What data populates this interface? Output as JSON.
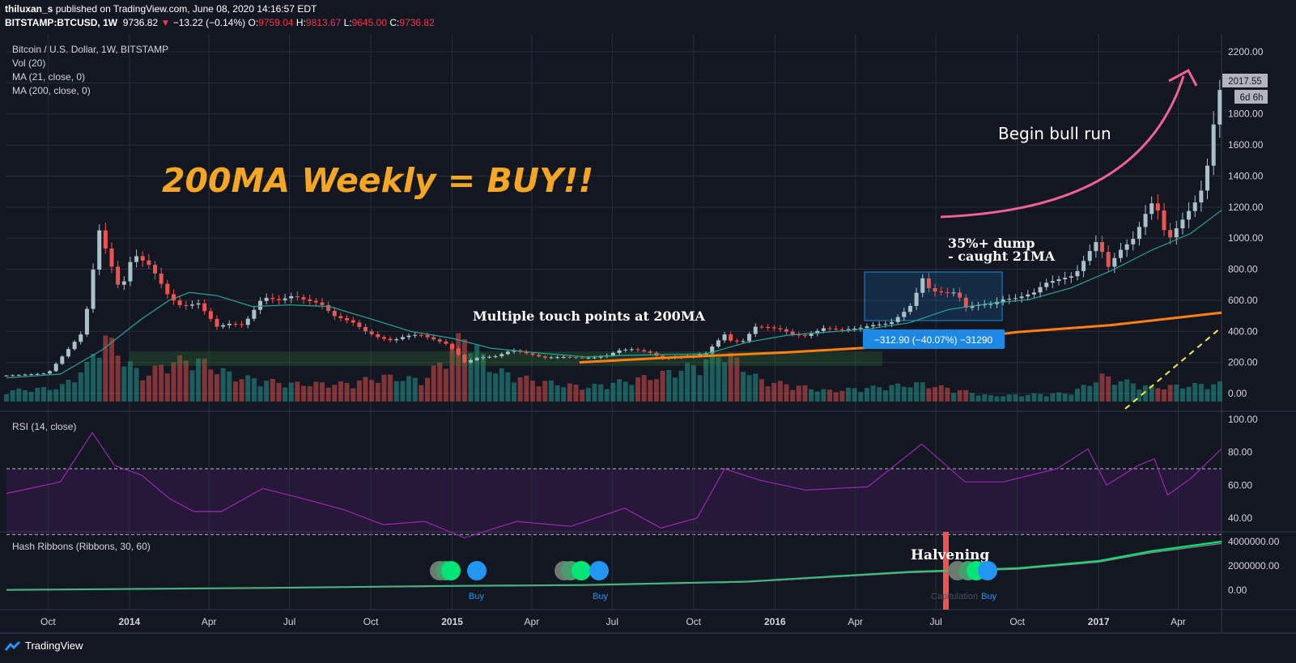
{
  "header": {
    "author": "thiluxan_s",
    "published_text": "published on TradingView.com, June 08, 2020 14:16:57 EDT",
    "symbol": "BITSTAMP:BTCUSD, 1W",
    "last": "9736.82",
    "change": "−13.22 (−0.14%)",
    "open_label": "O:",
    "open": "9759.04",
    "high_label": "H:",
    "high": "9813.67",
    "low_label": "L:",
    "low": "9645.00",
    "close_label": "C:",
    "close": "9736.82"
  },
  "legend": {
    "title": "Bitcoin / U.S. Dollar, 1W, BITSTAMP",
    "vol": "Vol (20)",
    "ma21": "MA (21, close, 0)",
    "ma200": "MA (200, close, 0)",
    "rsi": "RSI (14, close)",
    "hash": "Hash Ribbons (Ribbons, 30, 60)"
  },
  "annotations": {
    "headline": "200MA Weekly = BUY!!",
    "bull": "Begin bull run",
    "dump1": "35%+ dump",
    "dump2": "- caught 21MA",
    "touch": "Multiple touch points at 200MA",
    "halvening": "Halvening",
    "measure": "−312.90 (−40.07%) −31290",
    "buy1": "Buy",
    "buy2": "Buy",
    "buy3": "Buy",
    "capitulation": "Capitulation"
  },
  "price_labels": {
    "last": "2017.55",
    "countdown": "6d 6h"
  },
  "footer": {
    "brand": "TradingView"
  },
  "colors": {
    "background": "#131722",
    "up": "#a9c2c8",
    "down": "#ef5350",
    "ma21": "#26a69a",
    "ma200": "#ff7f11",
    "rsi": "#9c27b0",
    "headline": "#f5a623",
    "arrow": "#f06292",
    "buy": "#2196f3",
    "green": "#00e676"
  },
  "chart_data": [
    {
      "type": "candlestick",
      "title": "Bitcoin / U.S. Dollar, 1W, BITSTAMP",
      "x_ticks": [
        "Oct",
        "2014",
        "Apr",
        "Jul",
        "Oct",
        "2015",
        "Apr",
        "Jul",
        "Oct",
        "2016",
        "Apr",
        "Jul",
        "Oct",
        "2017",
        "Apr"
      ],
      "y_ticks": [
        "2200.00",
        "2000.00",
        "1800.00",
        "1600.00",
        "1400.00",
        "1200.00",
        "1000.00",
        "800.00",
        "600.00",
        "400.00",
        "200.00",
        "0.00"
      ],
      "ylim": [
        -100,
        2200
      ],
      "close_points": [
        [
          "2013-08-15",
          115
        ],
        [
          "2013-10-01",
          130
        ],
        [
          "2013-11-10",
          400
        ],
        [
          "2013-11-28",
          1050
        ],
        [
          "2013-12-10",
          850
        ],
        [
          "2013-12-22",
          650
        ],
        [
          "2014-01-05",
          900
        ],
        [
          "2014-01-25",
          820
        ],
        [
          "2014-02-15",
          620
        ],
        [
          "2014-03-01",
          560
        ],
        [
          "2014-03-20",
          580
        ],
        [
          "2014-04-10",
          430
        ],
        [
          "2014-04-25",
          450
        ],
        [
          "2014-05-10",
          440
        ],
        [
          "2014-06-01",
          620
        ],
        [
          "2014-06-20",
          600
        ],
        [
          "2014-07-05",
          630
        ],
        [
          "2014-07-20",
          600
        ],
        [
          "2014-08-05",
          580
        ],
        [
          "2014-08-20",
          500
        ],
        [
          "2014-09-10",
          460
        ],
        [
          "2014-09-25",
          400
        ],
        [
          "2014-10-10",
          360
        ],
        [
          "2014-10-25",
          340
        ],
        [
          "2014-11-10",
          370
        ],
        [
          "2014-11-25",
          380
        ],
        [
          "2014-12-10",
          350
        ],
        [
          "2014-12-25",
          320
        ],
        [
          "2015-01-05",
          270
        ],
        [
          "2015-01-15",
          200
        ],
        [
          "2015-01-30",
          230
        ],
        [
          "2015-02-20",
          240
        ],
        [
          "2015-03-10",
          280
        ],
        [
          "2015-03-25",
          260
        ],
        [
          "2015-04-15",
          230
        ],
        [
          "2015-05-05",
          235
        ],
        [
          "2015-05-25",
          230
        ],
        [
          "2015-06-10",
          230
        ],
        [
          "2015-06-25",
          245
        ],
        [
          "2015-07-10",
          280
        ],
        [
          "2015-07-25",
          285
        ],
        [
          "2015-08-15",
          260
        ],
        [
          "2015-08-25",
          225
        ],
        [
          "2015-09-15",
          235
        ],
        [
          "2015-10-01",
          240
        ],
        [
          "2015-10-15",
          260
        ],
        [
          "2015-10-25",
          320
        ],
        [
          "2015-11-05",
          380
        ],
        [
          "2015-11-12",
          340
        ],
        [
          "2015-11-25",
          330
        ],
        [
          "2015-12-10",
          430
        ],
        [
          "2015-12-25",
          425
        ],
        [
          "2016-01-10",
          410
        ],
        [
          "2016-01-20",
          380
        ],
        [
          "2016-02-05",
          370
        ],
        [
          "2016-02-25",
          420
        ],
        [
          "2016-03-15",
          410
        ],
        [
          "2016-04-05",
          420
        ],
        [
          "2016-04-20",
          440
        ],
        [
          "2016-05-10",
          450
        ],
        [
          "2016-05-25",
          520
        ],
        [
          "2016-06-05",
          580
        ],
        [
          "2016-06-15",
          750
        ],
        [
          "2016-06-25",
          660
        ],
        [
          "2016-07-10",
          650
        ],
        [
          "2016-07-25",
          650
        ],
        [
          "2016-08-03",
          550
        ],
        [
          "2016-08-15",
          570
        ],
        [
          "2016-09-01",
          575
        ],
        [
          "2016-09-15",
          605
        ],
        [
          "2016-10-01",
          615
        ],
        [
          "2016-10-20",
          650
        ],
        [
          "2016-11-01",
          710
        ],
        [
          "2016-11-20",
          740
        ],
        [
          "2016-12-05",
          760
        ],
        [
          "2016-12-20",
          900
        ],
        [
          "2017-01-01",
          1000
        ],
        [
          "2017-01-10",
          800
        ],
        [
          "2017-01-25",
          920
        ],
        [
          "2017-02-10",
          1000
        ],
        [
          "2017-02-25",
          1180
        ],
        [
          "2017-03-05",
          1250
        ],
        [
          "2017-03-20",
          980
        ],
        [
          "2017-04-01",
          1080
        ],
        [
          "2017-04-20",
          1230
        ],
        [
          "2017-05-01",
          1350
        ],
        [
          "2017-05-10",
          1700
        ],
        [
          "2017-05-20",
          2017.55
        ]
      ],
      "ma21_points": [
        [
          "2013-08-15",
          100
        ],
        [
          "2013-10-15",
          125
        ],
        [
          "2013-12-01",
          280
        ],
        [
          "2014-01-15",
          480
        ],
        [
          "2014-02-15",
          600
        ],
        [
          "2014-03-10",
          650
        ],
        [
          "2014-04-10",
          630
        ],
        [
          "2014-05-20",
          560
        ],
        [
          "2014-07-01",
          570
        ],
        [
          "2014-08-15",
          560
        ],
        [
          "2014-10-01",
          480
        ],
        [
          "2014-11-15",
          400
        ],
        [
          "2015-01-01",
          355
        ],
        [
          "2015-02-15",
          290
        ],
        [
          "2015-04-01",
          265
        ],
        [
          "2015-06-01",
          235
        ],
        [
          "2015-07-15",
          245
        ],
        [
          "2015-09-01",
          250
        ],
        [
          "2015-10-15",
          255
        ],
        [
          "2015-12-01",
          330
        ],
        [
          "2016-01-15",
          375
        ],
        [
          "2016-03-01",
          395
        ],
        [
          "2016-04-15",
          415
        ],
        [
          "2016-06-01",
          455
        ],
        [
          "2016-07-15",
          540
        ],
        [
          "2016-09-01",
          580
        ],
        [
          "2016-10-15",
          605
        ],
        [
          "2016-12-01",
          680
        ],
        [
          "2017-01-15",
          790
        ],
        [
          "2017-03-01",
          920
        ],
        [
          "2017-04-15",
          1030
        ],
        [
          "2017-05-20",
          1180
        ]
      ],
      "ma200_points": [
        [
          "2015-05-25",
          200
        ],
        [
          "2015-09-01",
          230
        ],
        [
          "2016-01-15",
          265
        ],
        [
          "2016-06-01",
          310
        ],
        [
          "2016-10-01",
          395
        ],
        [
          "2017-01-15",
          440
        ],
        [
          "2017-05-20",
          520
        ]
      ],
      "volume_points": [
        [
          "2013-08-15",
          0.15
        ],
        [
          "2013-10-15",
          0.2
        ],
        [
          "2013-11-15",
          0.5
        ],
        [
          "2013-12-01",
          0.95
        ],
        [
          "2013-12-15",
          0.75
        ],
        [
          "2014-01-15",
          0.35
        ],
        [
          "2014-02-15",
          0.55
        ],
        [
          "2014-03-15",
          0.6
        ],
        [
          "2014-05-01",
          0.35
        ],
        [
          "2014-07-01",
          0.25
        ],
        [
          "2014-09-01",
          0.25
        ],
        [
          "2014-10-15",
          0.35
        ],
        [
          "2014-12-01",
          0.3
        ],
        [
          "2015-01-15",
          0.95
        ],
        [
          "2015-02-15",
          0.45
        ],
        [
          "2015-04-01",
          0.3
        ],
        [
          "2015-06-01",
          0.2
        ],
        [
          "2015-08-15",
          0.35
        ],
        [
          "2015-10-01",
          0.5
        ],
        [
          "2015-11-05",
          0.7
        ],
        [
          "2015-12-15",
          0.3
        ],
        [
          "2016-03-01",
          0.15
        ],
        [
          "2016-06-15",
          0.25
        ],
        [
          "2016-09-01",
          0.08
        ],
        [
          "2016-12-01",
          0.12
        ],
        [
          "2017-01-05",
          0.35
        ],
        [
          "2017-03-01",
          0.2
        ],
        [
          "2017-05-20",
          0.25
        ]
      ]
    },
    {
      "type": "line",
      "title": "RSI (14, close)",
      "y_ticks": [
        "100.00",
        "80.00",
        "60.00",
        "40.00"
      ],
      "ylim": [
        20,
        100
      ],
      "points": [
        [
          "2013-08-15",
          55
        ],
        [
          "2013-10-15",
          62
        ],
        [
          "2013-11-20",
          92
        ],
        [
          "2013-12-15",
          72
        ],
        [
          "2014-01-15",
          66
        ],
        [
          "2014-02-15",
          52
        ],
        [
          "2014-03-15",
          44
        ],
        [
          "2014-04-15",
          44
        ],
        [
          "2014-06-01",
          58
        ],
        [
          "2014-07-15",
          52
        ],
        [
          "2014-09-01",
          45
        ],
        [
          "2014-10-15",
          36
        ],
        [
          "2014-12-01",
          38
        ],
        [
          "2015-01-15",
          28
        ],
        [
          "2015-03-15",
          38
        ],
        [
          "2015-05-15",
          35
        ],
        [
          "2015-07-15",
          46
        ],
        [
          "2015-08-25",
          34
        ],
        [
          "2015-10-05",
          40
        ],
        [
          "2015-11-05",
          70
        ],
        [
          "2015-12-15",
          63
        ],
        [
          "2016-02-05",
          57
        ],
        [
          "2016-04-15",
          59
        ],
        [
          "2016-06-15",
          85
        ],
        [
          "2016-08-03",
          62
        ],
        [
          "2016-09-15",
          62
        ],
        [
          "2016-11-15",
          70
        ],
        [
          "2016-12-20",
          82
        ],
        [
          "2017-01-10",
          60
        ],
        [
          "2017-02-15",
          72
        ],
        [
          "2017-03-05",
          76
        ],
        [
          "2017-03-20",
          54
        ],
        [
          "2017-04-15",
          64
        ],
        [
          "2017-05-20",
          82
        ]
      ]
    },
    {
      "type": "line",
      "title": "Hash Ribbons (Ribbons, 30, 60)",
      "y_ticks": [
        "4000000.00",
        "2000000.00",
        "0.00"
      ],
      "ylim": [
        -300000,
        4300000
      ],
      "points": [
        [
          "2013-08-15",
          20000
        ],
        [
          "2014-06-01",
          180000
        ],
        [
          "2015-01-01",
          350000
        ],
        [
          "2015-06-01",
          420000
        ],
        [
          "2015-12-01",
          700000
        ],
        [
          "2016-03-01",
          1100000
        ],
        [
          "2016-06-01",
          1500000
        ],
        [
          "2016-10-01",
          1800000
        ],
        [
          "2017-01-01",
          2400000
        ],
        [
          "2017-03-01",
          3200000
        ],
        [
          "2017-05-20",
          4000000
        ]
      ]
    }
  ]
}
